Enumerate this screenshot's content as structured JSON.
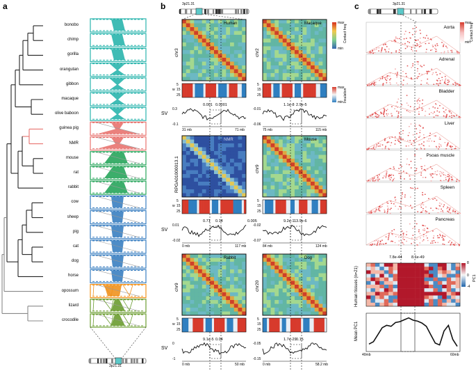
{
  "panel_labels": {
    "a": "a",
    "b": "b",
    "c": "c"
  },
  "panel_a": {
    "species": [
      {
        "name": "bonobo",
        "color": "#2ab5ad"
      },
      {
        "name": "chimp",
        "color": "#2ab5ad"
      },
      {
        "name": "gorilla",
        "color": "#2ab5ad"
      },
      {
        "name": "orangutan",
        "color": "#2ab5ad"
      },
      {
        "name": "gibbon",
        "color": "#2ab5ad"
      },
      {
        "name": "macaque",
        "color": "#2ab5ad"
      },
      {
        "name": "olive baboon",
        "color": "#2ab5ad"
      },
      {
        "name": "guinea pig",
        "color": "#e8736f"
      },
      {
        "name": "NMR",
        "color": "#e8736f"
      },
      {
        "name": "mouse",
        "color": "#27a55b"
      },
      {
        "name": "rat",
        "color": "#27a55b"
      },
      {
        "name": "rabbit",
        "color": "#27a55b"
      },
      {
        "name": "cow",
        "color": "#3a7fc1"
      },
      {
        "name": "sheep",
        "color": "#3a7fc1"
      },
      {
        "name": "pig",
        "color": "#3a7fc1"
      },
      {
        "name": "cat",
        "color": "#3a7fc1"
      },
      {
        "name": "dog",
        "color": "#3a7fc1"
      },
      {
        "name": "horse",
        "color": "#3a7fc1"
      },
      {
        "name": "opossum",
        "color": "#f0921e"
      },
      {
        "name": "lizard",
        "color": "#6a9c2f"
      },
      {
        "name": "crocodile",
        "color": "#6a9c2f"
      }
    ],
    "locus": "3p21.31"
  },
  "panel_b": {
    "heatmap_legend": {
      "max": "max",
      "min": "min",
      "title": "Contact freq."
    },
    "insulation_legend": {
      "max": "max",
      "min": "min",
      "title": "Insulation"
    },
    "maps": [
      {
        "species": "Human",
        "chr": "chr3",
        "start": "31 mb",
        "end": "71 mb",
        "pvalues": [
          "0.001",
          "0.0001"
        ],
        "sv_ticks": [
          "0.3",
          "-0.1"
        ]
      },
      {
        "species": "Macaque",
        "chr": "chr2",
        "start": "75 mb",
        "end": "115 mb",
        "pvalues": [
          "1.1e-8",
          "2.9e-5"
        ],
        "sv_ticks": [
          "-0.01",
          "-0.06"
        ]
      },
      {
        "species": "NMR",
        "chr": "RPGA01000013.1",
        "start": "0 mb",
        "end": "117 mb",
        "pvalues": [
          "0.71",
          "0.14",
          "0.005"
        ],
        "sv_ticks": [
          "0.01",
          "-0.02"
        ]
      },
      {
        "species": "Mouse",
        "chr": "chr9",
        "start": "84 mb",
        "end": "124 mb",
        "pvalues": [
          "9.2e-11",
          "3.9e-6"
        ],
        "sv_ticks": [
          "-0.02",
          "-0.07"
        ]
      },
      {
        "species": "Rabbit",
        "chr": "chr9",
        "start": "0 mb",
        "end": "50 mb",
        "pvalues": [
          "9.1e-5",
          "0.04"
        ],
        "sv_ticks": [
          "0",
          "-1"
        ]
      },
      {
        "species": "Dog",
        "chr": "chr20",
        "start": "0 mb",
        "end": "58.2 mb",
        "pvalues": [
          "1.7e-29",
          "0.15"
        ],
        "sv_ticks": [
          "-0.05",
          "-0.15"
        ]
      }
    ],
    "w_label": "w",
    "w_ticks": [
      "5",
      "15",
      "25"
    ],
    "sv_label": "SV",
    "locus": "3p21.31"
  },
  "panel_c": {
    "locus": "3p21.31",
    "tissues": [
      "Aorta",
      "Adrenal",
      "Bladder",
      "Liver",
      "Psoas muscle",
      "Spleen",
      "Pancreas"
    ],
    "legend_title": "Contact freq.",
    "legend_max": "max",
    "legend_min": "min",
    "pvalues": [
      "7.8e-44",
      "8.1e-49"
    ],
    "heat_ylabel": "Human tissues (n=21)",
    "pc1_label": "PC1",
    "pc1_ticks": [
      "8",
      "0",
      "-4"
    ],
    "mean_label": "Mean PC1",
    "x_start": "40mb",
    "x_end": "60mb"
  },
  "chart_data": {
    "type": "line",
    "title": "Mean PC1",
    "xlabel": "",
    "ylabel": "Mean PC1",
    "x": [
      "40mb",
      "",
      "",
      "",
      "",
      "",
      "",
      "",
      "",
      "",
      "",
      "",
      "",
      "",
      "",
      "",
      "",
      "",
      "",
      "",
      "60mb"
    ],
    "values": [
      1.0,
      1.5,
      3.0,
      4.5,
      5.0,
      4.8,
      5.6,
      5.8,
      6.2,
      6.6,
      6.1,
      5.9,
      5.5,
      4.8,
      3.0,
      1.2,
      0.8,
      3.8,
      5.0,
      2.0,
      0.5
    ]
  }
}
